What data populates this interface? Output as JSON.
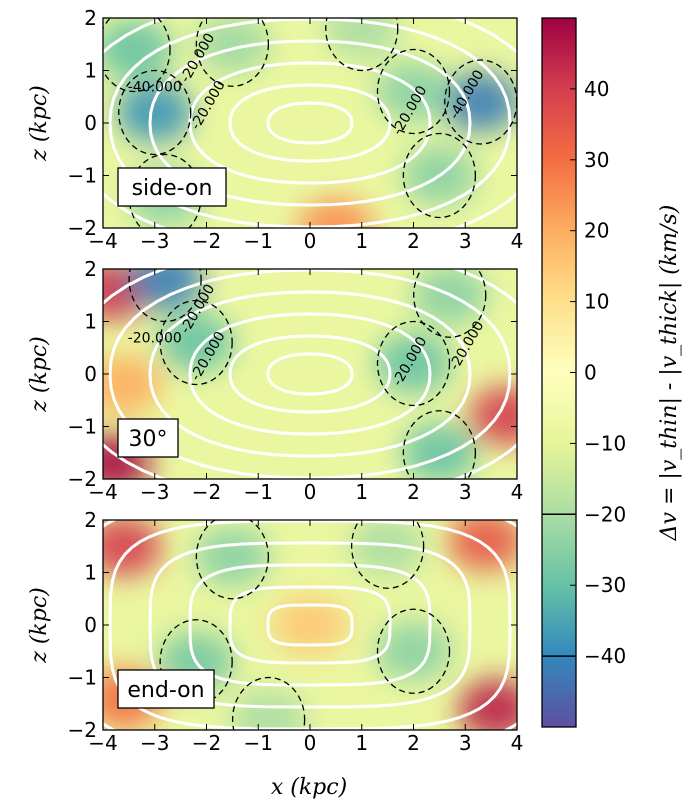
{
  "chart_data": {
    "type": "heatmap",
    "x_range": [
      -4,
      4
    ],
    "y_range": [
      -2,
      2
    ],
    "xlabel": "x (kpc)",
    "ylabel": "z (kpc)",
    "x_ticks": [
      "−4",
      "−3",
      "−2",
      "−1",
      "0",
      "1",
      "2",
      "3",
      "4"
    ],
    "y_ticks": [
      "2",
      "1",
      "0",
      "−1",
      "−2"
    ],
    "colorbar": {
      "label": "Δv = |v_thin| - |v_thick| (km/s)",
      "range": [
        -50,
        50
      ],
      "ticks": [
        "40",
        "30",
        "20",
        "10",
        "0",
        "−10",
        "−20",
        "−30",
        "−40"
      ],
      "tick_values": [
        40,
        30,
        20,
        10,
        0,
        -10,
        -20,
        -30,
        -40
      ],
      "contour_lines": [
        -20,
        -40
      ],
      "colors": [
        "#5e4fa2",
        "#3288bd",
        "#66c2a5",
        "#abdda4",
        "#e6f598",
        "#ffffbf",
        "#fee08b",
        "#fdae61",
        "#f46d43",
        "#d53e4f",
        "#9e0142"
      ]
    },
    "panels": [
      {
        "label": "side-on",
        "contour_labels": [
          "-20.000",
          "-40.000",
          "-20.000",
          "-20.000",
          "-40.000"
        ],
        "blobs": [
          {
            "x": -3.0,
            "z": 0.2,
            "v": -38
          },
          {
            "x": -3.4,
            "z": 1.4,
            "v": -30
          },
          {
            "x": 3.3,
            "z": 0.4,
            "v": -42
          },
          {
            "x": 2.5,
            "z": -1.0,
            "v": -25
          },
          {
            "x": -1.5,
            "z": 1.5,
            "v": -22
          },
          {
            "x": 1.0,
            "z": 1.8,
            "v": -20
          },
          {
            "x": 0.5,
            "z": -2.0,
            "v": 25
          },
          {
            "x": 2.0,
            "z": 0.6,
            "v": -25
          },
          {
            "x": -2.8,
            "z": -1.4,
            "v": -25
          }
        ]
      },
      {
        "label": "30°",
        "contour_labels": [
          "-20.000",
          "-20.000",
          "-20.000",
          "-20.000",
          "-20.000"
        ],
        "blobs": [
          {
            "x": -3.8,
            "z": 1.6,
            "v": 42
          },
          {
            "x": -2.8,
            "z": 1.8,
            "v": -42
          },
          {
            "x": -2.2,
            "z": 0.6,
            "v": -30
          },
          {
            "x": 2.0,
            "z": 0.2,
            "v": -30
          },
          {
            "x": 2.7,
            "z": 1.5,
            "v": -25
          },
          {
            "x": 3.8,
            "z": -0.8,
            "v": 40
          },
          {
            "x": -3.8,
            "z": -1.7,
            "v": 48
          },
          {
            "x": -3.6,
            "z": -0.2,
            "v": 20
          },
          {
            "x": 2.5,
            "z": -1.5,
            "v": -30
          }
        ]
      },
      {
        "label": "end-on",
        "contour_labels": [],
        "blobs": [
          {
            "x": -3.6,
            "z": 1.5,
            "v": 40
          },
          {
            "x": 3.4,
            "z": 1.6,
            "v": 35
          },
          {
            "x": 3.6,
            "z": -1.6,
            "v": 45
          },
          {
            "x": -3.6,
            "z": -1.4,
            "v": 30
          },
          {
            "x": 0.0,
            "z": 0.0,
            "v": 15
          },
          {
            "x": -1.5,
            "z": 1.3,
            "v": -25
          },
          {
            "x": 1.5,
            "z": 1.5,
            "v": -20
          },
          {
            "x": 2.0,
            "z": -0.5,
            "v": -25
          },
          {
            "x": -2.2,
            "z": -0.7,
            "v": -28
          },
          {
            "x": -0.8,
            "z": -1.8,
            "v": -20
          }
        ]
      }
    ]
  }
}
